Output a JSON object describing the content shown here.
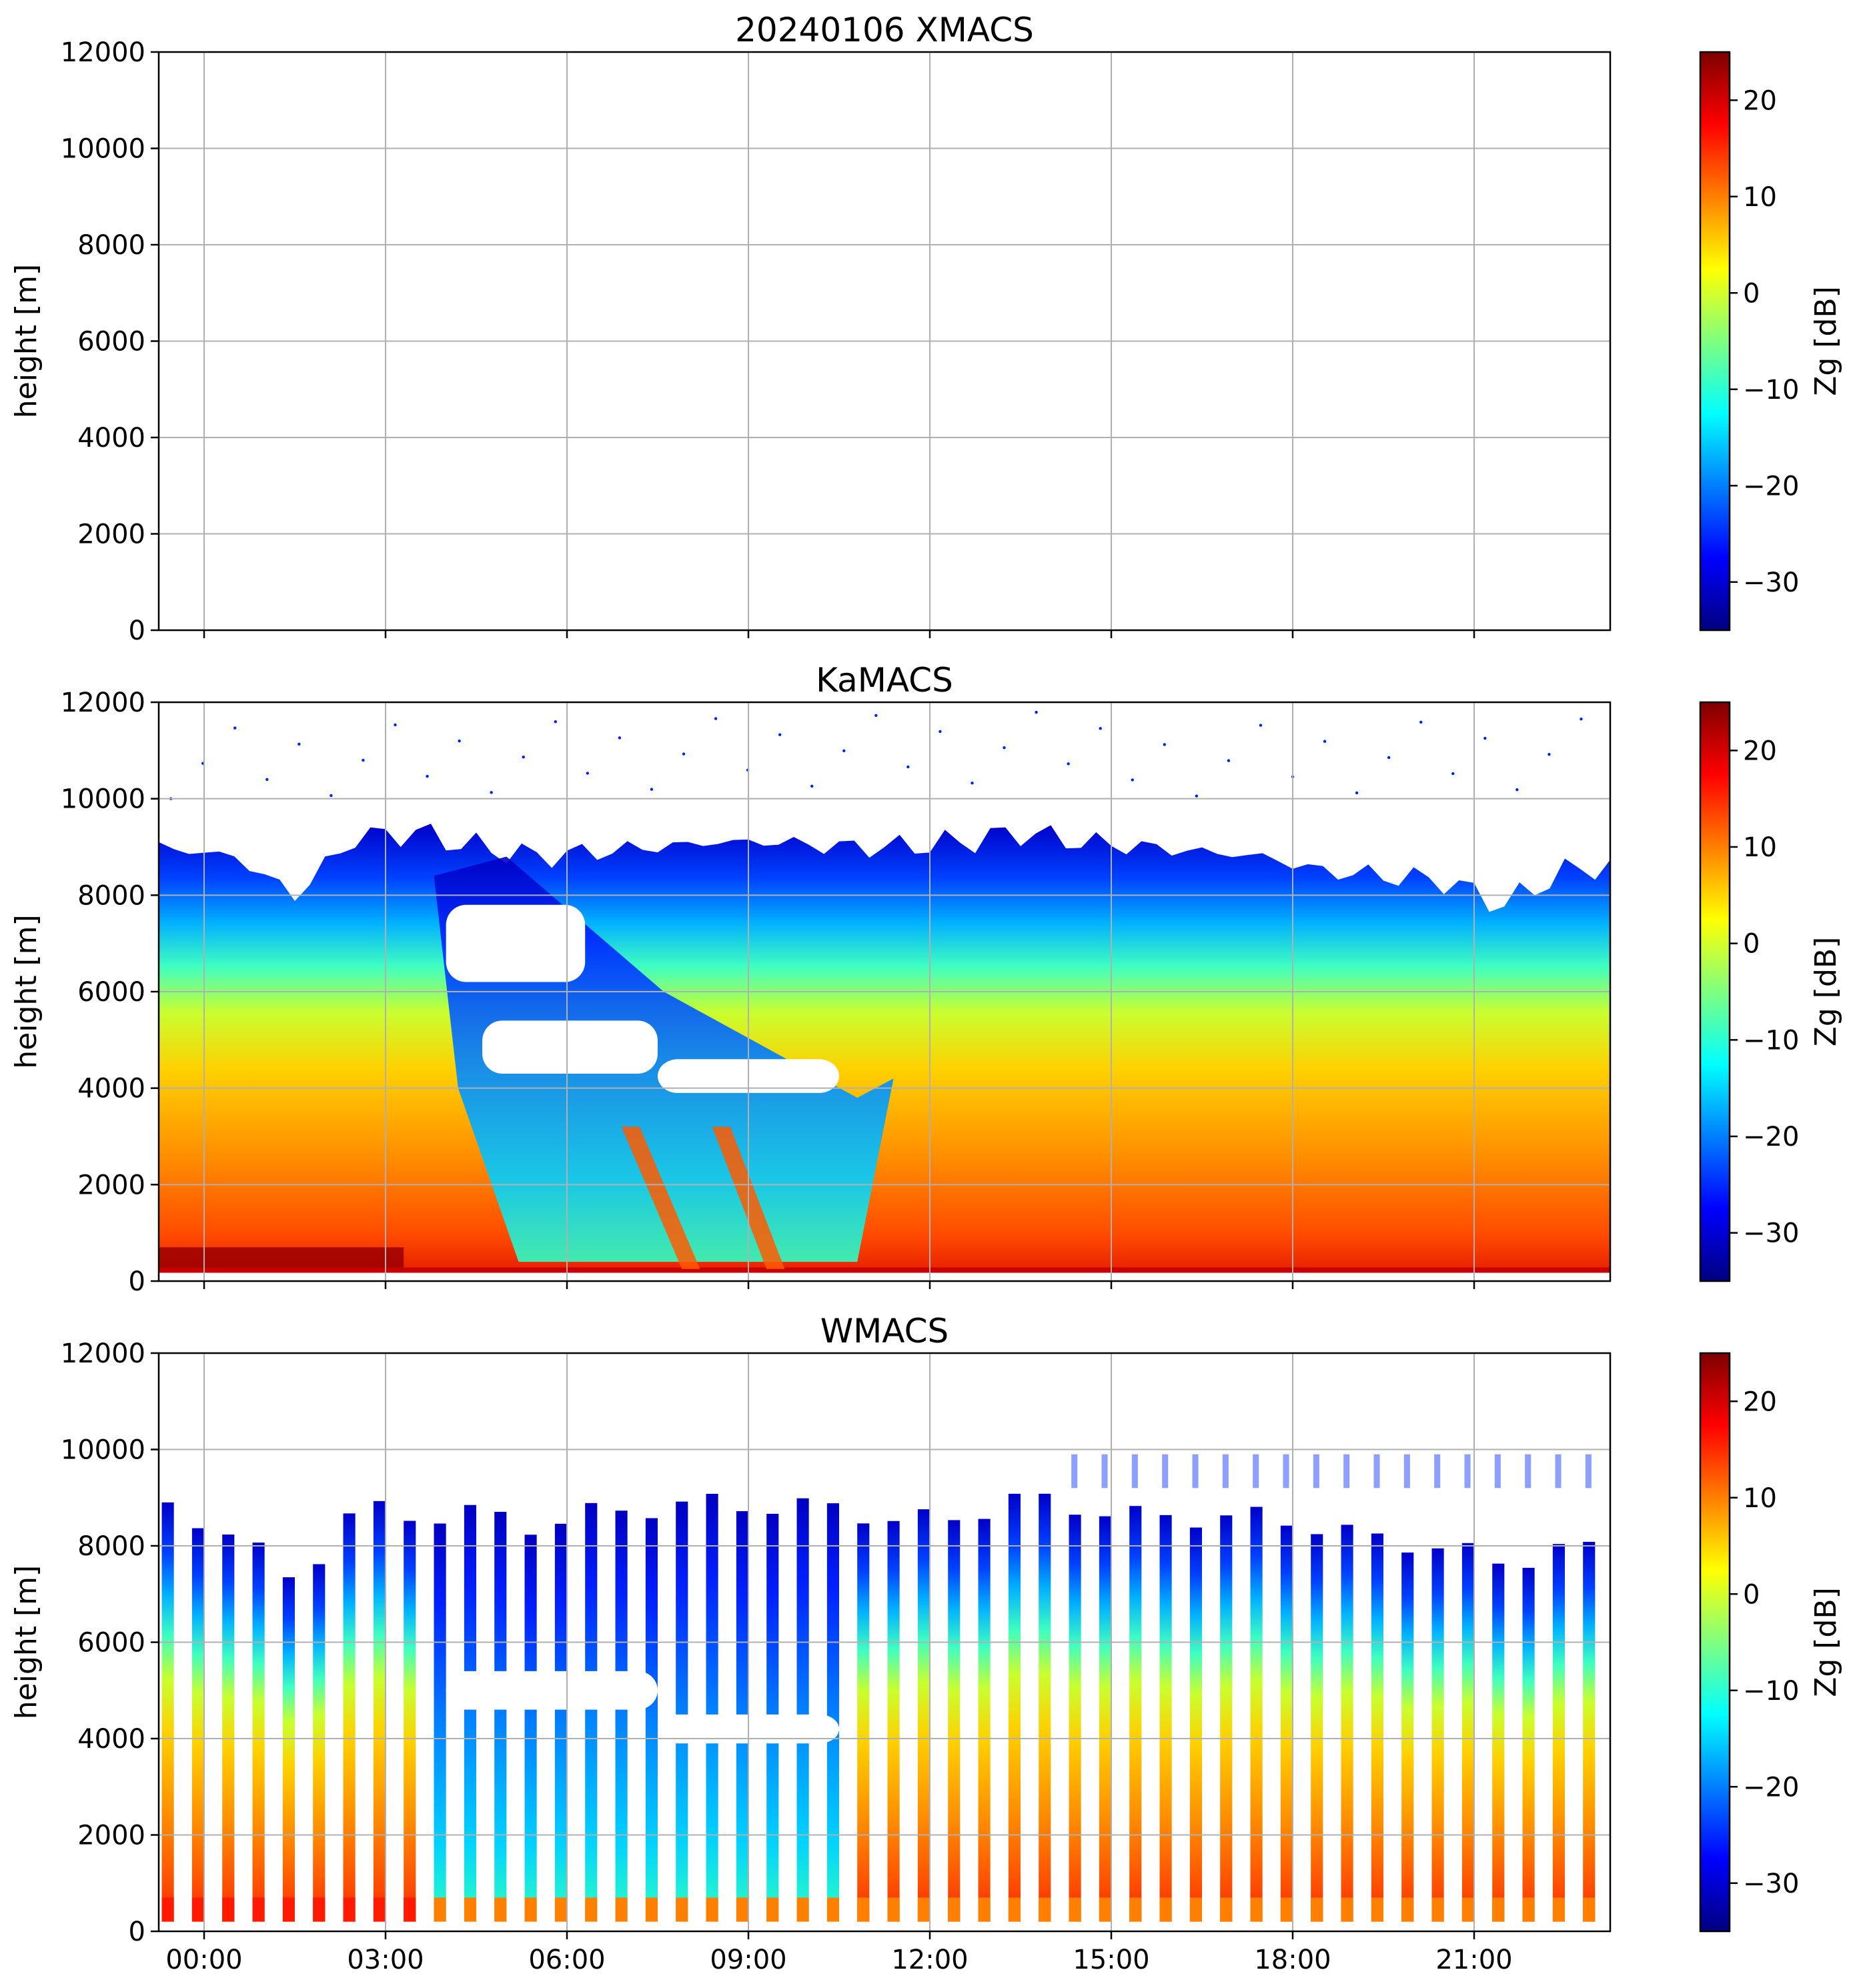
{
  "colors": {
    "jet": [
      "#00007f",
      "#0000ff",
      "#007fff",
      "#00ffff",
      "#7fff7f",
      "#ffff00",
      "#ff7f00",
      "#ff0000",
      "#7f0000"
    ]
  },
  "chart_data": [
    {
      "type": "heatmap",
      "title": "20240106 XMACS",
      "ylabel": "height [m]",
      "ylim": [
        0,
        12000
      ],
      "yticks": [
        "0",
        "2000",
        "4000",
        "6000",
        "8000",
        "10000",
        "12000"
      ],
      "xlim_hours": [
        -0.75,
        23.25
      ],
      "xtick_hours": [
        0,
        3,
        6,
        9,
        12,
        15,
        18,
        21
      ],
      "xticklabels": [],
      "grid": true,
      "colorbar": {
        "label": "Zg [dB]",
        "range": [
          -35,
          25
        ],
        "ticks": [
          "20",
          "10",
          "0",
          "−10",
          "−20",
          "−30"
        ],
        "tick_values": [
          20,
          10,
          0,
          -10,
          -20,
          -30
        ]
      },
      "echo": {
        "present": false
      }
    },
    {
      "type": "heatmap",
      "title": "KaMACS",
      "ylabel": "height [m]",
      "ylim": [
        0,
        12000
      ],
      "yticks": [
        "0",
        "2000",
        "4000",
        "6000",
        "8000",
        "10000",
        "12000"
      ],
      "xlim_hours": [
        -0.75,
        23.25
      ],
      "xtick_hours": [
        0,
        3,
        6,
        9,
        12,
        15,
        18,
        21
      ],
      "xticklabels": [],
      "grid": true,
      "colorbar": {
        "label": "Zg [dB]",
        "range": [
          -35,
          25
        ],
        "ticks": [
          "20",
          "10",
          "0",
          "−10",
          "−20",
          "−30"
        ],
        "tick_values": [
          20,
          10,
          0,
          -10,
          -20,
          -30
        ]
      },
      "echo": {
        "present": true,
        "continuous": true,
        "cloud_top_m": [
          [
            -0.75,
            9000
          ],
          [
            0.5,
            8800
          ],
          [
            1.5,
            8000
          ],
          [
            2.5,
            9200
          ],
          [
            3.5,
            9300
          ],
          [
            4.5,
            9000
          ],
          [
            5.5,
            8800
          ],
          [
            6.5,
            8900
          ],
          [
            7.5,
            9000
          ],
          [
            8.5,
            9100
          ],
          [
            9.5,
            9100
          ],
          [
            10.5,
            9000
          ],
          [
            11.5,
            9000
          ],
          [
            12.5,
            9100
          ],
          [
            13.5,
            9300
          ],
          [
            14.5,
            9100
          ],
          [
            15.5,
            9000
          ],
          [
            16.5,
            8900
          ],
          [
            17.5,
            8800
          ],
          [
            18.5,
            8500
          ],
          [
            19.5,
            8400
          ],
          [
            20.5,
            8300
          ],
          [
            21.5,
            7800
          ],
          [
            22.5,
            8500
          ],
          [
            23.25,
            8600
          ]
        ],
        "gap_regions": [
          {
            "x": [
              4.0,
              6.3
            ],
            "y": [
              6200,
              7800
            ]
          },
          {
            "x": [
              4.6,
              7.5
            ],
            "y": [
              4300,
              5400
            ]
          },
          {
            "x": [
              7.5,
              10.5
            ],
            "y": [
              3900,
              4600
            ]
          }
        ]
      }
    },
    {
      "type": "heatmap",
      "title": "WMACS",
      "ylabel": "height [m]",
      "ylim": [
        0,
        12000
      ],
      "yticks": [
        "0",
        "2000",
        "4000",
        "6000",
        "8000",
        "10000",
        "12000"
      ],
      "xlim_hours": [
        -0.75,
        23.25
      ],
      "xtick_hours": [
        0,
        3,
        6,
        9,
        12,
        15,
        18,
        21
      ],
      "xticklabels": [
        "00:00",
        "03:00",
        "06:00",
        "09:00",
        "12:00",
        "15:00",
        "18:00",
        "21:00"
      ],
      "grid": true,
      "colorbar": {
        "label": "Zg [dB]",
        "range": [
          -35,
          25
        ],
        "ticks": [
          "20",
          "10",
          "0",
          "−10",
          "−20",
          "−30"
        ],
        "tick_values": [
          20,
          10,
          0,
          -10,
          -20,
          -30
        ]
      },
      "echo": {
        "present": true,
        "continuous": false,
        "column_period_h": 0.5,
        "column_width_h": 0.2,
        "cloud_top_m": [
          [
            -0.75,
            8800
          ],
          [
            0.5,
            8300
          ],
          [
            1.5,
            7200
          ],
          [
            2.5,
            8800
          ],
          [
            3.5,
            8600
          ],
          [
            4.5,
            8700
          ],
          [
            5.5,
            8400
          ],
          [
            6.5,
            8700
          ],
          [
            7.5,
            8800
          ],
          [
            8.5,
            8900
          ],
          [
            9.5,
            8800
          ],
          [
            10.5,
            8800
          ],
          [
            11.5,
            8500
          ],
          [
            12.5,
            8600
          ],
          [
            13.5,
            9000
          ],
          [
            14.5,
            8800
          ],
          [
            15.5,
            8600
          ],
          [
            16.5,
            8600
          ],
          [
            17.5,
            8600
          ],
          [
            18.5,
            8400
          ],
          [
            19.5,
            8100
          ],
          [
            20.5,
            8000
          ],
          [
            21.5,
            7600
          ],
          [
            22.5,
            8000
          ],
          [
            23.25,
            7800
          ]
        ],
        "gap_regions": [
          {
            "x": [
              4.0,
              7.5
            ],
            "y": [
              4600,
              5400
            ]
          },
          {
            "x": [
              7.5,
              10.5
            ],
            "y": [
              3900,
              4500
            ]
          }
        ]
      }
    }
  ]
}
